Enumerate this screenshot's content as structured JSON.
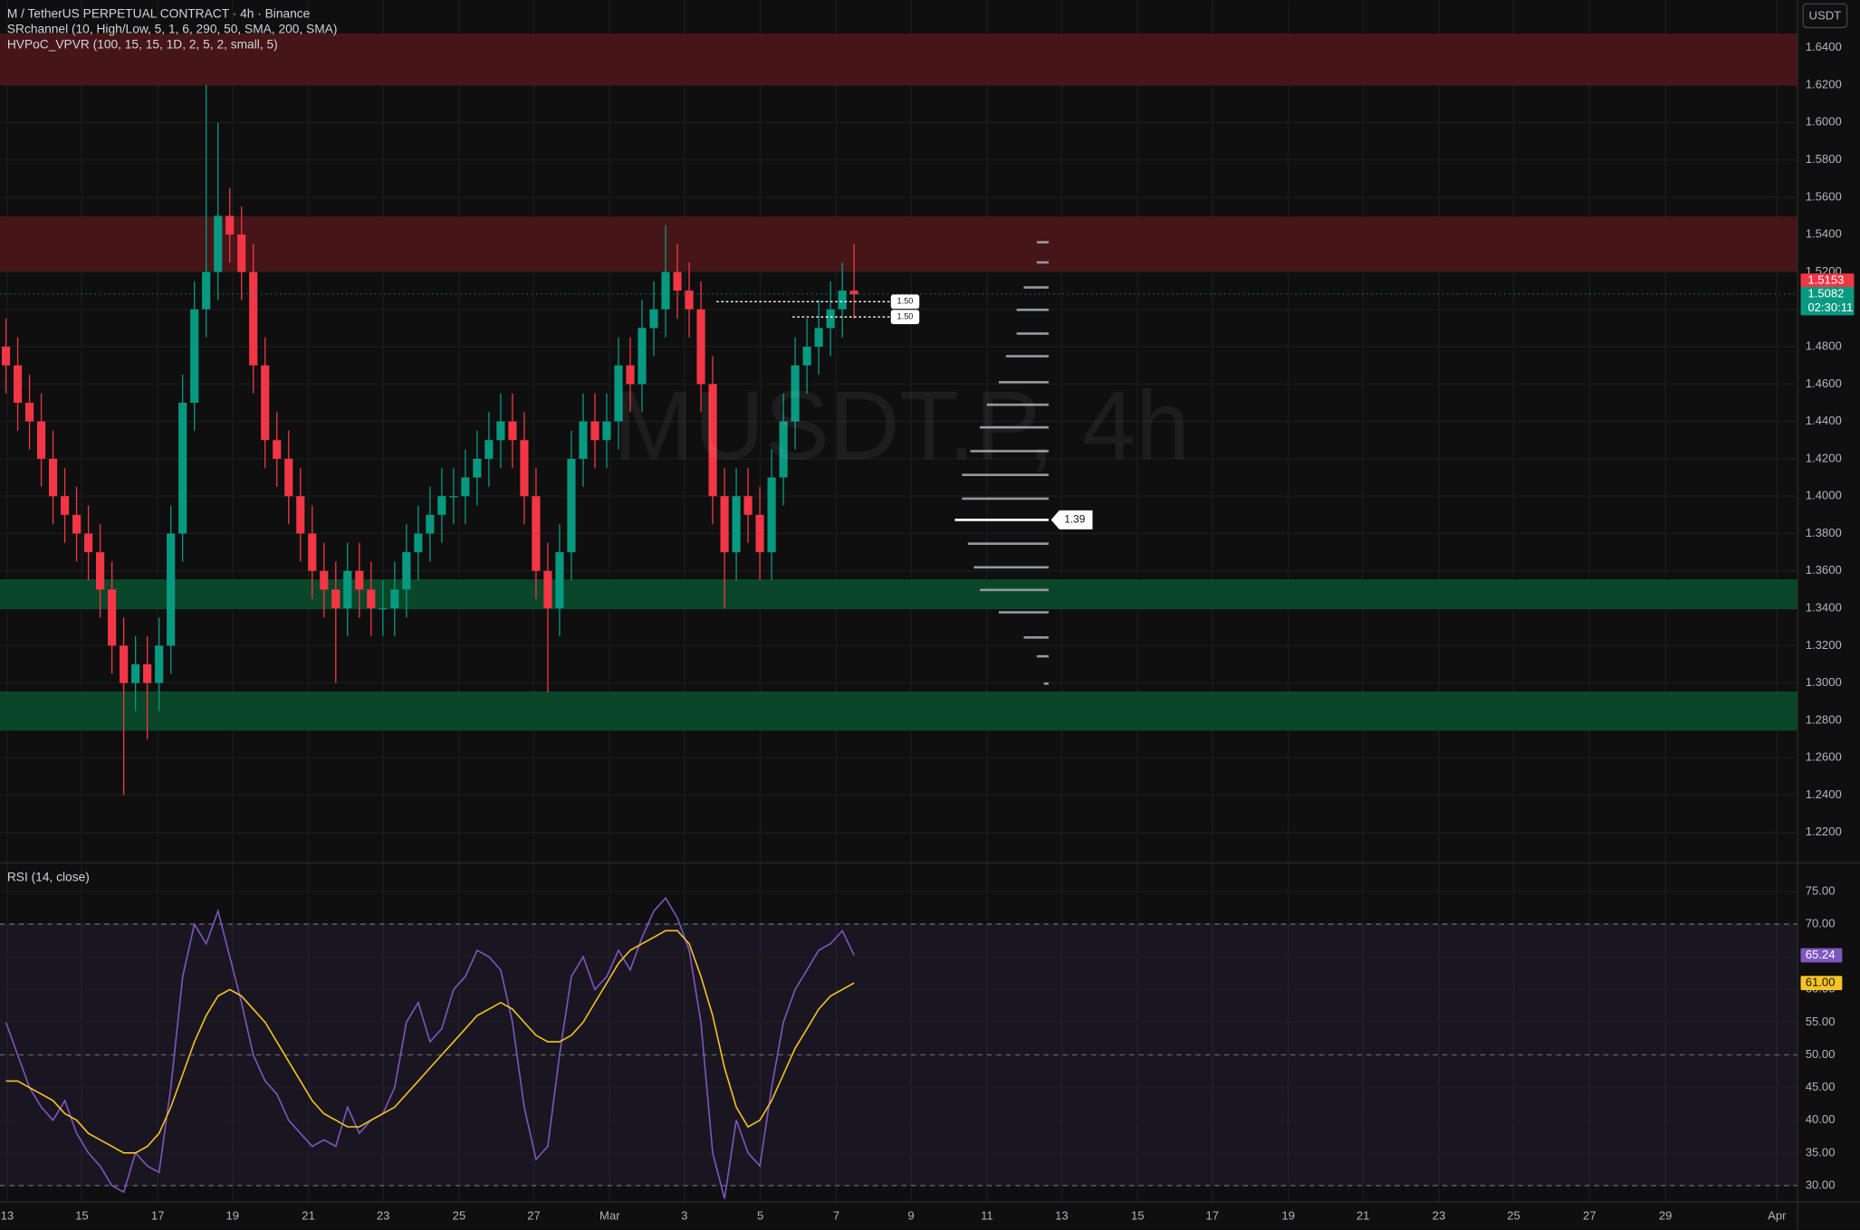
{
  "header": {
    "symbol": "M / TetherUS PERPETUAL CONTRACT · 4h · Binance",
    "indicators": [
      "SRchannel (10, High/Low, 5, 1, 6, 290, 50, SMA, 200, SMA)",
      "HVPoC_VPVR (100, 15, 15, 1D, 2, 5, 2, small, 5)"
    ],
    "currency": "USDT"
  },
  "watermark": "MUSDT.P, 4h",
  "chart_data": [
    {
      "type": "candlestick",
      "grid": true,
      "up_color": "#089981",
      "down_color": "#f23645",
      "ylim": [
        1.2041,
        1.6654
      ],
      "yticks": [
        {
          "value": 1.22,
          "label": "1.2200"
        },
        {
          "value": 1.24,
          "label": "1.2400"
        },
        {
          "value": 1.26,
          "label": "1.2600"
        },
        {
          "value": 1.28,
          "label": "1.2800"
        },
        {
          "value": 1.3,
          "label": "1.3000"
        },
        {
          "value": 1.32,
          "label": "1.3200"
        },
        {
          "value": 1.34,
          "label": "1.3400"
        },
        {
          "value": 1.36,
          "label": "1.3600"
        },
        {
          "value": 1.38,
          "label": "1.3800"
        },
        {
          "value": 1.4,
          "label": "1.4000"
        },
        {
          "value": 1.42,
          "label": "1.4200"
        },
        {
          "value": 1.44,
          "label": "1.4400"
        },
        {
          "value": 1.46,
          "label": "1.4600"
        },
        {
          "value": 1.48,
          "label": "1.4800"
        },
        {
          "value": 1.5,
          "label": "1.5000"
        },
        {
          "value": 1.52,
          "label": "1.5200"
        },
        {
          "value": 1.54,
          "label": "1.5400"
        },
        {
          "value": 1.56,
          "label": "1.5600"
        },
        {
          "value": 1.58,
          "label": "1.5800"
        },
        {
          "value": 1.6,
          "label": "1.6000"
        },
        {
          "value": 1.62,
          "label": "1.6200"
        },
        {
          "value": 1.64,
          "label": "1.6400"
        }
      ],
      "time_labels": [
        "13",
        "15",
        "17",
        "19",
        "21",
        "23",
        "25",
        "27",
        "Mar",
        "3",
        "5",
        "7",
        "9",
        "11",
        "13",
        "15",
        "17",
        "19",
        "21",
        "23",
        "25",
        "27",
        "29",
        "Apr"
      ],
      "open": [
        1.48,
        1.47,
        1.45,
        1.44,
        1.42,
        1.4,
        1.39,
        1.38,
        1.37,
        1.35,
        1.32,
        1.3,
        1.31,
        1.3,
        1.32,
        1.38,
        1.45,
        1.5,
        1.52,
        1.55,
        1.54,
        1.52,
        1.47,
        1.43,
        1.42,
        1.4,
        1.38,
        1.36,
        1.35,
        1.34,
        1.36,
        1.35,
        1.34,
        1.34,
        1.35,
        1.37,
        1.38,
        1.39,
        1.4,
        1.4,
        1.41,
        1.42,
        1.43,
        1.44,
        1.43,
        1.4,
        1.36,
        1.34,
        1.37,
        1.42,
        1.44,
        1.43,
        1.44,
        1.47,
        1.46,
        1.49,
        1.5,
        1.52,
        1.51,
        1.5,
        1.46,
        1.4,
        1.37,
        1.4,
        1.39,
        1.37,
        1.41,
        1.44,
        1.47,
        1.48,
        1.49,
        1.5,
        1.51
      ],
      "high": [
        1.495,
        1.485,
        1.465,
        1.455,
        1.435,
        1.415,
        1.405,
        1.395,
        1.385,
        1.365,
        1.335,
        1.325,
        1.325,
        1.335,
        1.395,
        1.465,
        1.515,
        1.62,
        1.6,
        1.565,
        1.555,
        1.535,
        1.485,
        1.445,
        1.435,
        1.415,
        1.395,
        1.375,
        1.365,
        1.375,
        1.375,
        1.365,
        1.355,
        1.365,
        1.385,
        1.395,
        1.405,
        1.415,
        1.415,
        1.425,
        1.435,
        1.445,
        1.455,
        1.455,
        1.445,
        1.415,
        1.375,
        1.385,
        1.435,
        1.455,
        1.455,
        1.455,
        1.485,
        1.485,
        1.505,
        1.515,
        1.545,
        1.535,
        1.525,
        1.515,
        1.475,
        1.415,
        1.415,
        1.415,
        1.405,
        1.425,
        1.455,
        1.485,
        1.495,
        1.505,
        1.515,
        1.525,
        1.535
      ],
      "low": [
        1.455,
        1.435,
        1.425,
        1.405,
        1.385,
        1.375,
        1.365,
        1.355,
        1.335,
        1.305,
        1.24,
        1.285,
        1.27,
        1.285,
        1.305,
        1.365,
        1.435,
        1.485,
        1.505,
        1.525,
        1.505,
        1.455,
        1.415,
        1.405,
        1.385,
        1.365,
        1.345,
        1.335,
        1.3,
        1.325,
        1.335,
        1.325,
        1.325,
        1.325,
        1.335,
        1.355,
        1.365,
        1.375,
        1.385,
        1.385,
        1.395,
        1.405,
        1.415,
        1.415,
        1.385,
        1.345,
        1.295,
        1.325,
        1.355,
        1.405,
        1.415,
        1.415,
        1.425,
        1.445,
        1.445,
        1.475,
        1.485,
        1.495,
        1.485,
        1.445,
        1.385,
        1.34,
        1.355,
        1.375,
        1.355,
        1.355,
        1.395,
        1.425,
        1.455,
        1.465,
        1.475,
        1.485,
        1.495
      ],
      "close": [
        1.47,
        1.45,
        1.44,
        1.42,
        1.4,
        1.39,
        1.38,
        1.37,
        1.35,
        1.32,
        1.3,
        1.31,
        1.3,
        1.32,
        1.38,
        1.45,
        1.5,
        1.52,
        1.55,
        1.54,
        1.52,
        1.47,
        1.43,
        1.42,
        1.4,
        1.38,
        1.36,
        1.35,
        1.34,
        1.36,
        1.35,
        1.34,
        1.34,
        1.35,
        1.37,
        1.38,
        1.39,
        1.4,
        1.4,
        1.41,
        1.42,
        1.43,
        1.44,
        1.43,
        1.4,
        1.36,
        1.34,
        1.37,
        1.42,
        1.44,
        1.43,
        1.44,
        1.47,
        1.46,
        1.49,
        1.5,
        1.52,
        1.51,
        1.5,
        1.46,
        1.4,
        1.37,
        1.4,
        1.39,
        1.37,
        1.41,
        1.44,
        1.47,
        1.48,
        1.49,
        1.5,
        1.51,
        1.508
      ],
      "zones": [
        {
          "low": 1.6197,
          "high": 1.6477,
          "color": "#4a1618"
        },
        {
          "low": 1.5203,
          "high": 1.5497,
          "color": "#4a1618"
        },
        {
          "low": 1.3395,
          "high": 1.3555,
          "color": "#0b4a2a"
        },
        {
          "low": 1.2745,
          "high": 1.2955,
          "color": "#0b4a2a"
        }
      ],
      "levels": [
        {
          "value": 1.5041,
          "label": "1.50"
        },
        {
          "value": 1.4959,
          "label": "1.50"
        }
      ],
      "volume_profile": {
        "levels": [
          1.5359,
          1.5251,
          1.5117,
          1.4997,
          1.487,
          1.4749,
          1.461,
          1.4489,
          1.4368,
          1.4241,
          1.4114,
          1.3987,
          1.3873,
          1.3746,
          1.3619,
          1.3498,
          1.3378,
          1.3244,
          1.3143,
          1.2997
        ],
        "volumes": [
          10,
          10,
          21,
          27,
          27,
          36,
          42,
          52,
          58,
          66,
          73,
          73,
          79,
          68,
          63,
          58,
          42,
          21,
          10,
          4
        ],
        "poc": {
          "value": 1.3873,
          "label": "1.39"
        }
      },
      "price_tags": [
        {
          "value": 1.5153,
          "color": "#f23645"
        },
        {
          "value": 1.5082,
          "color": "#089981",
          "countdown": "02:30:11"
        }
      ]
    },
    {
      "type": "line",
      "title": "RSI (14, close)",
      "grid": true,
      "ylim": [
        27.6,
        79.3
      ],
      "yticks": [
        {
          "value": 30,
          "label": "30.00"
        },
        {
          "value": 35,
          "label": "35.00"
        },
        {
          "value": 40,
          "label": "40.00"
        },
        {
          "value": 45,
          "label": "45.00"
        },
        {
          "value": 50,
          "label": "50.00"
        },
        {
          "value": 55,
          "label": "55.00"
        },
        {
          "value": 60,
          "label": "60.00"
        },
        {
          "value": 65,
          "label": "65.00"
        },
        {
          "value": 70,
          "label": "70.00"
        },
        {
          "value": 75,
          "label": "75.00"
        }
      ],
      "band": {
        "upper": 70,
        "middle": 50,
        "lower": 30,
        "color": "#7e57c2"
      },
      "series": [
        {
          "color": "#7e57c2",
          "values": [
            55,
            50,
            45,
            42,
            40,
            43,
            38,
            35,
            33,
            30,
            29,
            35,
            33,
            32,
            45,
            62,
            70,
            67,
            72,
            65,
            58,
            50,
            46,
            44,
            40,
            38,
            36,
            37,
            36,
            42,
            38,
            40,
            41,
            45,
            55,
            58,
            52,
            54,
            60,
            62,
            66,
            65,
            63,
            55,
            42,
            34,
            36,
            50,
            62,
            65,
            60,
            62,
            66,
            63,
            68,
            72,
            74,
            71,
            66,
            55,
            35,
            28,
            40,
            35,
            33,
            45,
            55,
            60,
            63,
            66,
            67,
            69,
            65.24
          ],
          "tag": {
            "value": 65.24,
            "label": "65.24"
          }
        },
        {
          "color": "#f7c325",
          "values": [
            46,
            46,
            45,
            44,
            43,
            41,
            40,
            38,
            37,
            36,
            35,
            35,
            36,
            38,
            42,
            47,
            52,
            56,
            59,
            60,
            59,
            57,
            55,
            52,
            49,
            46,
            43,
            41,
            40,
            39,
            39,
            40,
            41,
            42,
            44,
            46,
            48,
            50,
            52,
            54,
            56,
            57,
            58,
            57,
            55,
            53,
            52,
            52,
            53,
            55,
            58,
            61,
            64,
            66,
            67,
            68,
            69,
            69,
            67,
            62,
            56,
            48,
            42,
            39,
            40,
            43,
            47,
            51,
            54,
            57,
            59,
            60,
            61
          ],
          "tag": {
            "value": 61,
            "label": "61.00"
          }
        }
      ]
    }
  ]
}
